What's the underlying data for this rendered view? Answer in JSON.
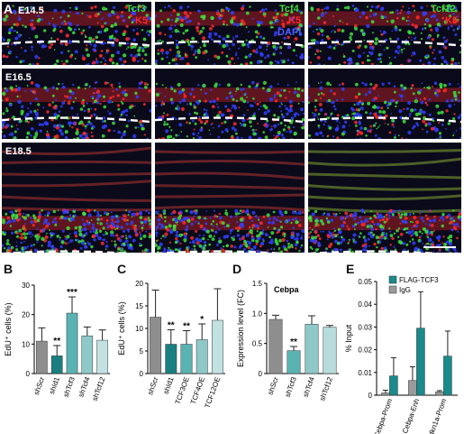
{
  "panel_a": {
    "letter": "A",
    "rows": [
      "E14.5",
      "E16.5",
      "E18.5"
    ],
    "columns": [
      {
        "marker": "Tcf3",
        "counter": "K5",
        "extra": ""
      },
      {
        "marker": "Tcf4",
        "counter": "K5",
        "extra": "DAPI"
      },
      {
        "marker": "Tcf12",
        "counter": "K5",
        "extra": ""
      }
    ],
    "colors": {
      "green": "#3ee03e",
      "red": "#ff2a2a",
      "blue": "#3040ff",
      "background": "#0a0a1a"
    }
  },
  "chart_data": [
    {
      "panel": "B",
      "type": "bar",
      "ylabel": "EdU⁺ cells (%)",
      "ylim": [
        0,
        30
      ],
      "yticks": [
        "0",
        "10",
        "20",
        "30"
      ],
      "categories": [
        "shScr",
        "shId1",
        "shTcf3",
        "shTcf4",
        "shTcf12"
      ],
      "values": [
        11,
        6,
        20.5,
        12.8,
        11.3
      ],
      "errors": [
        4.5,
        3.5,
        5.5,
        3,
        3.5
      ],
      "significance": [
        "",
        "**",
        "***",
        "",
        ""
      ],
      "colors": [
        "#8e8e8e",
        "#1a7f80",
        "#5ab3b3",
        "#8ec8c8",
        "#c2e2e2"
      ]
    },
    {
      "panel": "C",
      "type": "bar",
      "ylabel": "EdU⁺ cells (%)",
      "ylim": [
        0,
        20
      ],
      "yticks": [
        "0",
        "5",
        "10",
        "15",
        "20"
      ],
      "categories": [
        "shScr",
        "shId1",
        "TCF3OE",
        "TCF4OE",
        "TCF12OE"
      ],
      "values": [
        12.5,
        6.5,
        6.5,
        7.5,
        11.8
      ],
      "errors": [
        6,
        3.2,
        3,
        3.5,
        7
      ],
      "significance": [
        "",
        "**",
        "**",
        "*",
        ""
      ],
      "colors": [
        "#8e8e8e",
        "#1a7f80",
        "#5ab3b3",
        "#8ec8c8",
        "#c2e2e2"
      ]
    },
    {
      "panel": "D",
      "type": "bar",
      "title": "Cebpa",
      "ylabel": "Expression level (FC)",
      "ylim": [
        0,
        1.5
      ],
      "yticks": [
        "0",
        "0.5",
        "1.0",
        "1.5"
      ],
      "categories": [
        "shScr",
        "shTcf3",
        "shTcf4",
        "shTcf12"
      ],
      "values": [
        0.9,
        0.38,
        0.82,
        0.77
      ],
      "errors": [
        0.07,
        0.07,
        0.14,
        0.03
      ],
      "significance": [
        "",
        "**",
        "",
        ""
      ],
      "colors": [
        "#8e8e8e",
        "#5ab3b3",
        "#8ec8c8",
        "#b8dcdc"
      ]
    },
    {
      "panel": "E",
      "type": "bar",
      "ylabel": "% Input",
      "ylim": [
        0,
        0.05
      ],
      "yticks": [
        "0",
        "0.01",
        "0.02",
        "0.03",
        "0.04",
        "0.05"
      ],
      "categories": [
        "Cebpa-Prom",
        "Cebpa-Enh",
        "Cdkn1a-Prom"
      ],
      "series": [
        {
          "name": "FLAG-TCF3",
          "values": [
            0.0085,
            0.0295,
            0.0172
          ],
          "errors": [
            0.008,
            0.016,
            0.011
          ],
          "color": "#1a8a8a"
        },
        {
          "name": "IgG",
          "values": [
            0.001,
            0.0065,
            0.0015
          ],
          "errors": [
            0.0012,
            0.006,
            0.0005
          ],
          "color": "#9a9a9a"
        }
      ],
      "legend": "top-right"
    }
  ]
}
